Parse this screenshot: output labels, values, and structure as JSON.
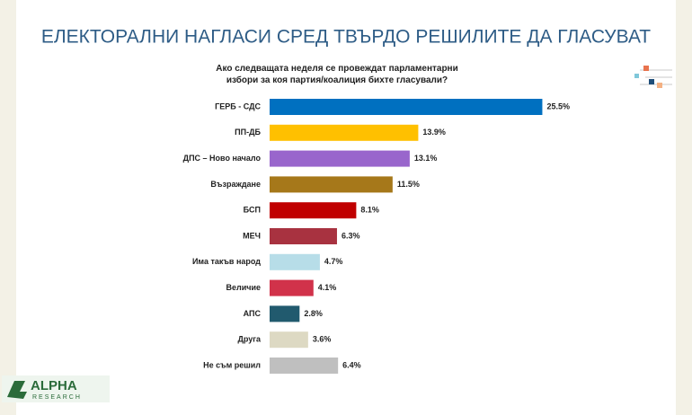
{
  "chart_data": {
    "type": "bar",
    "orientation": "horizontal",
    "title": "ЕЛЕКТОРАЛНИ НАГЛАСИ СРЕД ТВЪРДО РЕШИЛИТЕ ДА ГЛАСУВАТ",
    "subtitle": "Ако следващата неделя се провеждат парламентарни избори за коя партия/коалиция бихте гласували?",
    "categories": [
      "ГЕРБ - СДС",
      "ПП-ДБ",
      "ДПС – Ново начало",
      "Възраждане",
      "БСП",
      "МЕЧ",
      "Има такъв народ",
      "Величие",
      "АПС",
      "Друга",
      "Не съм решил"
    ],
    "values": [
      25.5,
      13.9,
      13.1,
      11.5,
      8.1,
      6.3,
      4.7,
      4.1,
      2.8,
      3.6,
      6.4
    ],
    "value_labels": [
      "25.5%",
      "13.9%",
      "13.1%",
      "11.5%",
      "8.1%",
      "6.3%",
      "4.7%",
      "4.1%",
      "2.8%",
      "3.6%",
      "6.4%"
    ],
    "colors": [
      "#0070c0",
      "#ffc000",
      "#9966cc",
      "#a6781a",
      "#c00000",
      "#a83240",
      "#b7dde8",
      "#d1324a",
      "#215a6e",
      "#ddd9c3",
      "#bfbfbf"
    ]
  },
  "logo": {
    "name": "ALPHA",
    "sub": "RESEARCH"
  }
}
